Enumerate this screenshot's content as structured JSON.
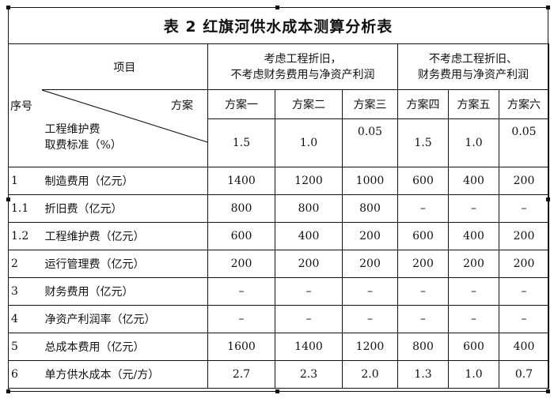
{
  "title": "表 2 红旗河供水成本测算分析表",
  "headers": {
    "seq": "序号",
    "item": "项目",
    "plan": "方案",
    "group1_line1": "考虑工程折旧，",
    "group1_line2": "不考虑财务费用与净资产利润",
    "group2_line1": "不考虑工程折旧、",
    "group2_line2": "财务费用与净资产利润",
    "plans": [
      "方案一",
      "方案二",
      "方案三",
      "方案四",
      "方案五",
      "方案六"
    ],
    "std_line1": "工程维护费",
    "std_line2": "取费标准（%）",
    "std_values": [
      "1.5",
      "1.0",
      "0.05",
      "1.5",
      "1.0",
      "0.05"
    ]
  },
  "rows": [
    {
      "seq": "1",
      "item": "制造费用（亿元）",
      "values": [
        "1400",
        "1200",
        "1000",
        "600",
        "400",
        "200"
      ]
    },
    {
      "seq": "1.1",
      "item": "折旧费（亿元）",
      "values": [
        "800",
        "800",
        "800",
        "–",
        "–",
        "–"
      ]
    },
    {
      "seq": "1.2",
      "item": "工程维护费（亿元）",
      "values": [
        "600",
        "400",
        "200",
        "600",
        "400",
        "200"
      ]
    },
    {
      "seq": "2",
      "item": "运行管理费（亿元）",
      "values": [
        "200",
        "200",
        "200",
        "200",
        "200",
        "200"
      ]
    },
    {
      "seq": "3",
      "item": "财务费用（亿元）",
      "values": [
        "–",
        "–",
        "–",
        "–",
        "–",
        "–"
      ]
    },
    {
      "seq": "4",
      "item": "净资产利润率（亿元）",
      "values": [
        "–",
        "–",
        "–",
        "–",
        "–",
        "–"
      ]
    },
    {
      "seq": "5",
      "item": "总成本费用（亿元）",
      "values": [
        "1600",
        "1400",
        "1200",
        "800",
        "600",
        "400"
      ]
    },
    {
      "seq": "6",
      "item": "单方供水成本（元/方）",
      "values": [
        "2.7",
        "2.3",
        "2.0",
        "1.3",
        "1.0",
        "0.7"
      ]
    }
  ]
}
